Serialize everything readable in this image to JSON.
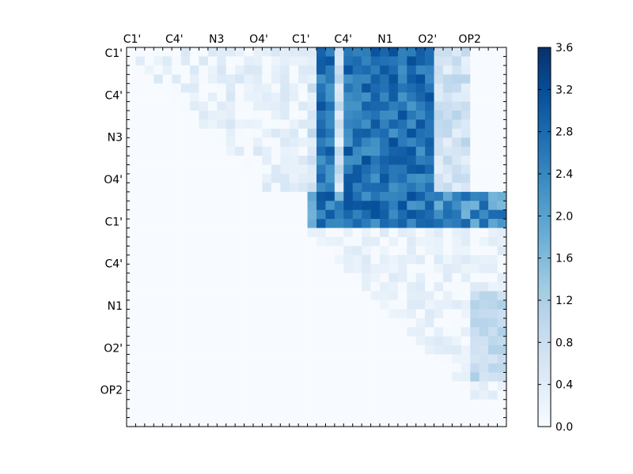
{
  "chart_data": {
    "type": "heatmap",
    "title": "",
    "xlabel": "",
    "ylabel": "",
    "x_tick_labels": [
      "C1'",
      "C4'",
      "N3",
      "O4'",
      "C1'",
      "C4'",
      "N1",
      "O2'",
      "OP2"
    ],
    "y_tick_labels": [
      "C1'",
      "C4'",
      "N3",
      "O4'",
      "C1'",
      "C4'",
      "N1",
      "O2'",
      "OP2"
    ],
    "n_rows": 42,
    "n_cols": 42,
    "colormap": "Blues",
    "color_low": "#f7fbff",
    "color_high": "#08306b",
    "value_range": [
      0.0,
      3.6
    ],
    "colorbar_ticks": [
      "0.0",
      "0.4",
      "0.8",
      "1.2",
      "1.6",
      "2.0",
      "2.4",
      "2.8",
      "3.2",
      "3.6"
    ],
    "colorbar_tick_values": [
      0.0,
      0.4,
      0.8,
      1.2,
      1.6,
      2.0,
      2.4,
      2.8,
      3.2,
      3.6
    ],
    "upper_triangle_only": true,
    "background_value": 0.0,
    "regions": [
      {
        "rows": [
          0,
          19
        ],
        "cols": [
          20,
          37
        ],
        "pattern": "column-bands",
        "band_cols": [
          21,
          24,
          26,
          28,
          30,
          32
        ],
        "band_value": 2.9,
        "base_value": 0.9
      },
      {
        "rows": [
          16,
          19
        ],
        "cols": [
          20,
          41
        ],
        "pattern": "row-block",
        "value": 2.3
      },
      {
        "rows": [
          0,
          15
        ],
        "cols": [
          1,
          19
        ],
        "pattern": "faint",
        "value": 0.35
      },
      {
        "rows": [
          20,
          38
        ],
        "cols": [
          20,
          41
        ],
        "pattern": "faint",
        "value": 0.3
      },
      {
        "rows": [
          27,
          36
        ],
        "cols": [
          38,
          41
        ],
        "pattern": "column-block",
        "value": 1.0
      }
    ]
  }
}
